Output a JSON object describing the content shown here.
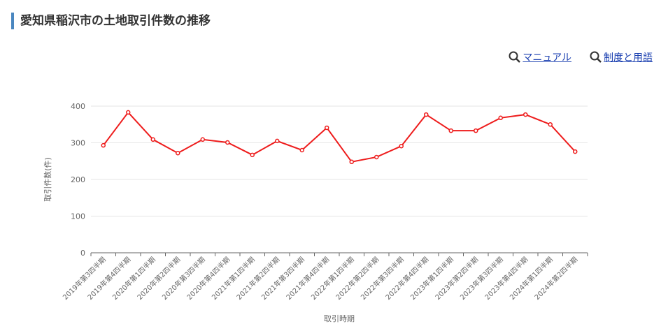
{
  "header": {
    "title": "愛知県稲沢市の土地取引件数の推移",
    "links": [
      "マニュアル",
      "制度と用語"
    ]
  },
  "chart_data": {
    "type": "line",
    "categories": [
      "2019年第3四半期",
      "2019年第4四半期",
      "2020年第1四半期",
      "2020年第2四半期",
      "2020年第3四半期",
      "2020年第4四半期",
      "2021年第1四半期",
      "2021年第2四半期",
      "2021年第3四半期",
      "2021年第4四半期",
      "2022年第1四半期",
      "2022年第2四半期",
      "2022年第3四半期",
      "2022年第4四半期",
      "2023年第1四半期",
      "2023年第2四半期",
      "2023年第3四半期",
      "2023年第4四半期",
      "2024年第1四半期",
      "2024年第2四半期"
    ],
    "series": [
      {
        "name": "取引件数",
        "color": "#ee1c1c",
        "values": [
          293,
          383,
          309,
          272,
          309,
          301,
          267,
          305,
          280,
          341,
          248,
          261,
          291,
          377,
          333,
          333,
          368,
          377,
          350,
          276
        ]
      }
    ],
    "ylim": [
      0,
      400
    ],
    "yticks": [
      0,
      100,
      200,
      300,
      400
    ],
    "grid": true,
    "y_label": "取引件数(件)",
    "x_label": "取引時期"
  }
}
